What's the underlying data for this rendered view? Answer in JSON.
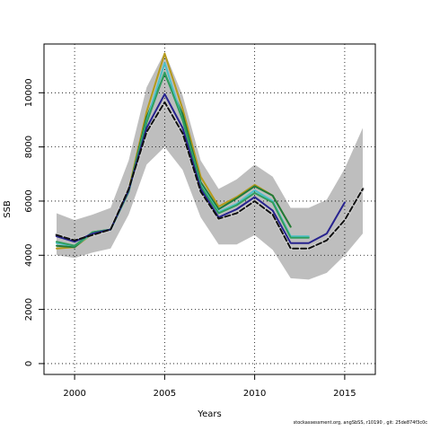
{
  "chart_data": {
    "type": "line",
    "xlabel": "Years",
    "ylabel": "SSB",
    "xlim": [
      1998.3,
      2016.7
    ],
    "ylim": [
      -400,
      11800
    ],
    "x_ticks": [
      2000,
      2005,
      2010,
      2015
    ],
    "y_ticks": [
      0,
      2000,
      4000,
      6000,
      8000,
      10000
    ],
    "grid": "dotted",
    "confidence_band": {
      "x": [
        1999,
        2000,
        2001,
        2002,
        2003,
        2004,
        2005,
        2006,
        2007,
        2008,
        2009,
        2010,
        2011,
        2012,
        2013,
        2014,
        2015,
        2016
      ],
      "upper": [
        5550,
        5300,
        5500,
        5750,
        7500,
        10200,
        11500,
        9900,
        7500,
        6450,
        6800,
        7350,
        6900,
        5750,
        5750,
        6050,
        7200,
        8700
      ],
      "lower": [
        4000,
        3900,
        4100,
        4250,
        5500,
        7350,
        8000,
        7150,
        5400,
        4400,
        4400,
        4750,
        4200,
        3150,
        3100,
        3350,
        4000,
        4800
      ],
      "color": "#bebebe"
    },
    "series": [
      {
        "color": "#d0d0d0",
        "width": 4,
        "dash": "",
        "x": [
          1999,
          2000,
          2001,
          2002,
          2003,
          2004,
          2005,
          2006,
          2007,
          2008,
          2009,
          2010,
          2011,
          2012,
          2013,
          2014,
          2015,
          2016
        ],
        "values": [
          4750,
          4550,
          4750,
          4950,
          6450,
          8550,
          9650,
          8500,
          6350,
          5350,
          5550,
          6000,
          5500,
          4250,
          4250,
          4550,
          5300,
          6450
        ]
      },
      {
        "color": "#b59a1a",
        "width": 2,
        "dash": "",
        "x": [
          1999,
          2000,
          2001,
          2002,
          2003,
          2004,
          2005,
          2006,
          2007,
          2008,
          2009,
          2010,
          2011,
          2012
        ],
        "values": [
          4250,
          4300,
          4800,
          4950,
          6400,
          9300,
          11450,
          9400,
          6900,
          5800,
          6150,
          6600,
          6200,
          5050
        ]
      },
      {
        "color": "#1f7a3a",
        "width": 2,
        "dash": "",
        "x": [
          1999,
          2000,
          2001,
          2002,
          2003,
          2004,
          2005,
          2006,
          2007,
          2008,
          2009,
          2010,
          2011,
          2012
        ],
        "values": [
          4350,
          4300,
          4850,
          4950,
          6350,
          9100,
          10700,
          9200,
          6700,
          5700,
          6100,
          6550,
          6200,
          5050
        ]
      },
      {
        "color": "#4cc1c7",
        "width": 2,
        "dash": "",
        "x": [
          1999,
          2000,
          2001,
          2002,
          2003,
          2004,
          2005,
          2006,
          2007,
          2008,
          2009,
          2010,
          2011,
          2012,
          2013
        ],
        "values": [
          4450,
          4350,
          4800,
          4950,
          6350,
          8950,
          11100,
          9000,
          6600,
          5600,
          5900,
          6400,
          6000,
          4700,
          4700
        ]
      },
      {
        "color": "#2f9e5e",
        "width": 2,
        "dash": "",
        "x": [
          1999,
          2000,
          2001,
          2002,
          2003,
          2004,
          2005,
          2006,
          2007,
          2008,
          2009,
          2010,
          2011,
          2012,
          2013
        ],
        "values": [
          4500,
          4350,
          4850,
          4950,
          6350,
          8900,
          10750,
          9000,
          6550,
          5550,
          5850,
          6300,
          5950,
          4650,
          4650
        ]
      },
      {
        "color": "#27238f",
        "width": 2,
        "dash": "",
        "x": [
          1999,
          2000,
          2001,
          2002,
          2003,
          2004,
          2005,
          2006,
          2007,
          2008,
          2009,
          2010,
          2011,
          2012,
          2013,
          2014,
          2015
        ],
        "values": [
          4700,
          4500,
          4800,
          4950,
          6400,
          8700,
          9950,
          8700,
          6450,
          5400,
          5700,
          6150,
          5650,
          4450,
          4450,
          4800,
          5950
        ]
      },
      {
        "color": "#111111",
        "width": 2,
        "dash": "6,3",
        "x": [
          1999,
          2000,
          2001,
          2002,
          2003,
          2004,
          2005,
          2006,
          2007,
          2008,
          2009,
          2010,
          2011,
          2012,
          2013,
          2014,
          2015,
          2016
        ],
        "values": [
          4750,
          4550,
          4750,
          4950,
          6450,
          8550,
          9650,
          8500,
          6350,
          5350,
          5550,
          6000,
          5500,
          4250,
          4250,
          4550,
          5300,
          6450
        ]
      }
    ]
  },
  "footnote": "stockassessment.org, angSbSS, r10190 , git: 25de874f3c0c"
}
